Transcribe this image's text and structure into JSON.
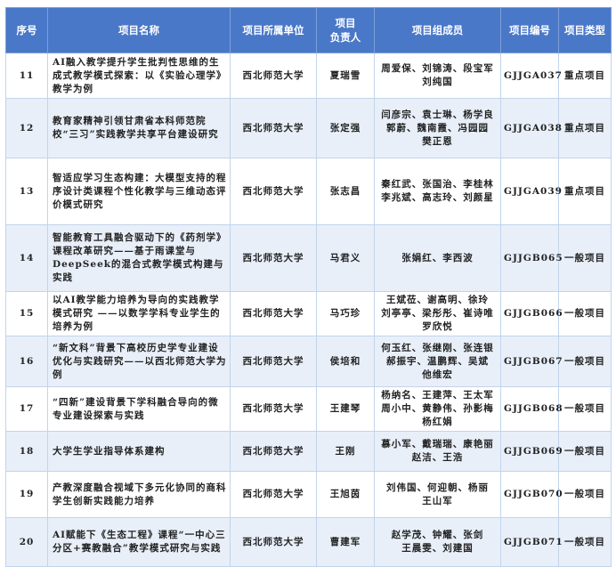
{
  "headers": [
    "序号",
    "项目名称",
    "项目所属单位",
    "项目\n负责人",
    "项目组成员",
    "项目编号",
    "项目类型"
  ],
  "colors": {
    "header_bg": "#4a78c8",
    "alt_row_bg": "#e8eff9",
    "border": "#c2d4ec"
  },
  "rows": [
    {
      "no": "11",
      "name": "AI融入教学提升学生批判性思维的生成式教学模式探索：以《实验心理学》教学为例",
      "unit": "西北师范大学",
      "leader": "夏瑞雪",
      "members": "周爱保、刘锦涛、段宝军\n刘纯国",
      "code": "GJJGA037",
      "type": "重点项目"
    },
    {
      "no": "12",
      "name": "教育家精神引领甘肃省本科师范院校“三习”实践教学共享平台建设研究",
      "unit": "西北师范大学",
      "leader": "张定强",
      "members": "闫彦宗、袁士琳、杨学良\n郭蔚、魏南霞、冯园园\n樊正恩",
      "code": "GJJGA038",
      "type": "重点项目"
    },
    {
      "no": "13",
      "name": "智适应学习生态构建：大模型支持的程序设计类课程个性化教学与三维动态评价模式研究",
      "unit": "西北师范大学",
      "leader": "张志昌",
      "members": "秦红武、张国治、李桂林\n李兆斌、高志玲、刘颜星",
      "code": "GJJGA039",
      "type": "重点项目"
    },
    {
      "no": "14",
      "name": "智能教育工具融合驱动下的《药剂学》课程改革研究——基于雨课堂与DeepSeek的混合式教学模式构建与实践",
      "unit": "西北师范大学",
      "leader": "马君义",
      "members": "张娟红、李西波",
      "code": "GJJGB065",
      "type": "一般项目"
    },
    {
      "no": "15",
      "name": "以AI教学能力培养为导向的实践教学模式研究 ——以数学学科专业学生的培养为例",
      "unit": "西北师范大学",
      "leader": "马巧珍",
      "members": "王斌莅、谢高明、徐玲\n刘亭亭、梁彤彤、崔诗唯\n罗欣悦",
      "code": "GJJGB066",
      "type": "一般项目"
    },
    {
      "no": "16",
      "name": "“新文科”背景下高校历史学专业建设优化与实践研究——以西北师范大学为例",
      "unit": "西北师范大学",
      "leader": "侯培和",
      "members": "何玉红、张继刚、张连银\n郝振宇、温鹏辉、吴斌\n他维宏",
      "code": "GJJGB067",
      "type": "一般项目"
    },
    {
      "no": "17",
      "name": "“四新”建设背景下学科融合导向的微专业建设探索与实践",
      "unit": "西北师范大学",
      "leader": "王建琴",
      "members": "杨纳名、王建萍、王太军\n周小中、黄静伟、孙影梅\n杨红娟",
      "code": "GJJGB068",
      "type": "一般项目"
    },
    {
      "no": "18",
      "name": "大学生学业指导体系建构",
      "unit": "西北师范大学",
      "leader": "王刚",
      "members": "慕小军、戴瑞瑞、康艳丽\n赵洁、王浩",
      "code": "GJJGB069",
      "type": "一般项目"
    },
    {
      "no": "19",
      "name": "产教深度融合视域下多元化协同的商科学生创新实践能力培养",
      "unit": "西北师范大学",
      "leader": "王旭茵",
      "members": "刘伟国、何迎朝、杨丽\n王山军",
      "code": "GJJGB070",
      "type": "一般项目"
    },
    {
      "no": "20",
      "name": "AI赋能下《生态工程》课程“一中心三分区+赛教融合”教学模式研究与实践",
      "unit": "西北师范大学",
      "leader": "曹建军",
      "members": "赵学茂、钟耀、张剑\n王晨雯、刘建国",
      "code": "GJJGB071",
      "type": "一般项目"
    }
  ]
}
